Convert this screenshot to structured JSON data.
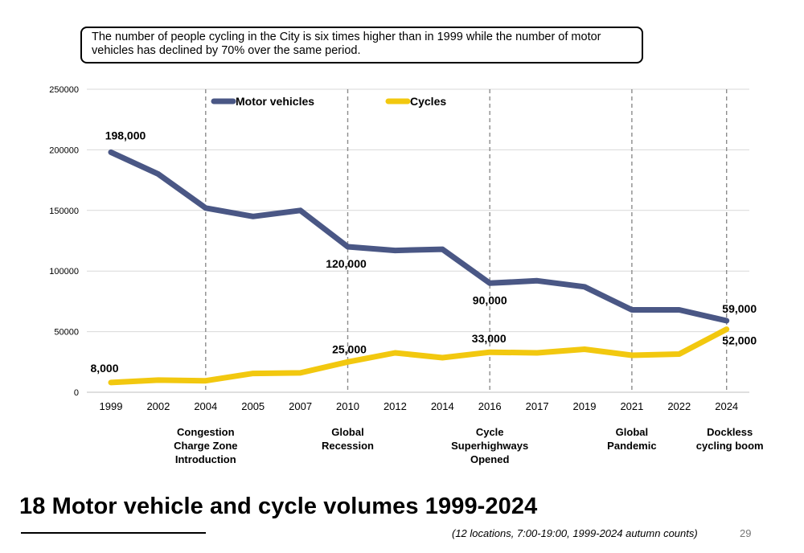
{
  "callout": "The number of people cycling in the City is six times higher than in 1999 while the number of motor vehicles has declined by 70% over the same period.",
  "title": "18 Motor vehicle and cycle volumes 1999-2024",
  "footnote": "(12 locations, 7:00-19:00, 1999-2024 autumn counts)",
  "page_number": "29",
  "chart_data": {
    "type": "line",
    "categories": [
      "1999",
      "2002",
      "2004",
      "2005",
      "2007",
      "2010",
      "2012",
      "2014",
      "2016",
      "2017",
      "2019",
      "2021",
      "2022",
      "2024"
    ],
    "ylim": [
      0,
      250000
    ],
    "yticks": [
      "0",
      "50000",
      "100000",
      "150000",
      "200000",
      "250000"
    ],
    "grid": true,
    "legend_placement": "top",
    "series": [
      {
        "name": "Motor vehicles",
        "color": "#4a5785",
        "values": [
          198000,
          180000,
          152000,
          145000,
          150000,
          120000,
          117000,
          118000,
          90000,
          92000,
          87000,
          68000,
          68000,
          59000
        ]
      },
      {
        "name": "Cycles",
        "color": "#f2c80f",
        "values": [
          8000,
          10000,
          9500,
          15500,
          16000,
          25000,
          32500,
          28500,
          33000,
          32500,
          35500,
          30500,
          31500,
          52000
        ]
      }
    ],
    "data_labels": [
      {
        "text": "198,000",
        "series": 0,
        "index": 0
      },
      {
        "text": "120,000",
        "series": 0,
        "index": 5
      },
      {
        "text": "90,000",
        "series": 0,
        "index": 8
      },
      {
        "text": "59,000",
        "series": 0,
        "index": 13
      },
      {
        "text": "8,000",
        "series": 1,
        "index": 0
      },
      {
        "text": "25,000",
        "series": 1,
        "index": 5
      },
      {
        "text": "33,000",
        "series": 1,
        "index": 8
      },
      {
        "text": "52,000",
        "series": 1,
        "index": 13
      }
    ],
    "milestones": [
      {
        "year": "2004",
        "label": "Congestion\nCharge Zone\nIntroduction"
      },
      {
        "year": "2010",
        "label": "Global\nRecession"
      },
      {
        "year": "2016",
        "label": "Cycle\nSuperhighways\nOpened"
      },
      {
        "year": "2021",
        "label": "Global\nPandemic"
      },
      {
        "year": "2024",
        "label": "Dockless\ncycling boom"
      }
    ]
  }
}
